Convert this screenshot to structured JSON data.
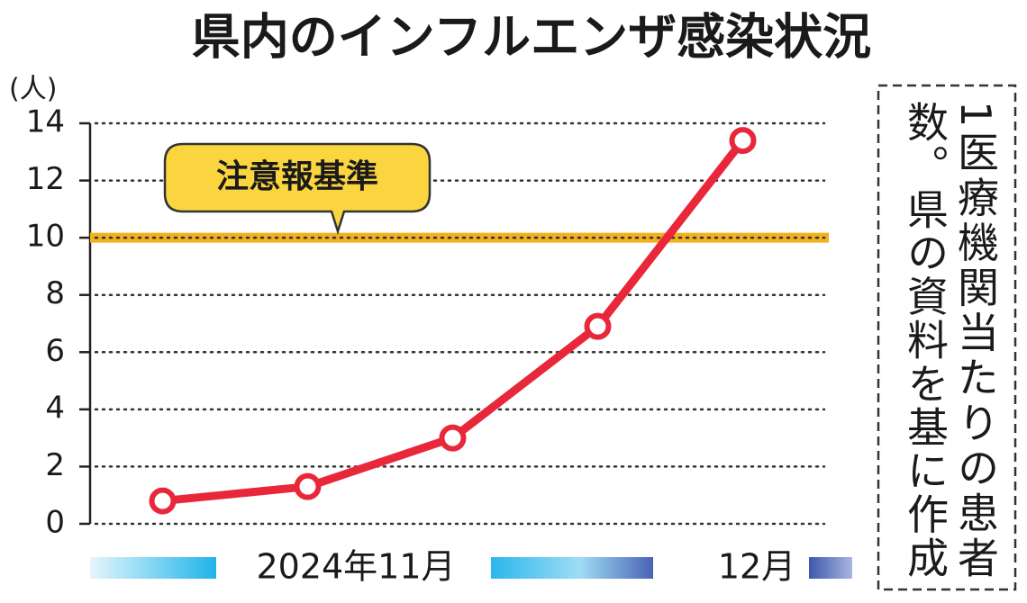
{
  "chart_data": {
    "type": "line",
    "title": "県内のインフルエンザ感染状況",
    "y_unit": "(人)",
    "categories": [
      null,
      null,
      null,
      null,
      null
    ],
    "values": [
      0.8,
      1.3,
      3.0,
      6.9,
      13.4
    ],
    "color": "#e8283a",
    "x_labels": [
      "2024年11月",
      "12月"
    ],
    "reference_line": {
      "value": 10,
      "label": "注意報基準",
      "color": "#f2b01e"
    },
    "ylim": [
      0,
      14
    ],
    "yticks": [
      0,
      2,
      4,
      6,
      8,
      10,
      12,
      14
    ],
    "grid": true,
    "note": [
      "1医療機関当たりの患者",
      "数。県の資料を基に作成"
    ]
  }
}
